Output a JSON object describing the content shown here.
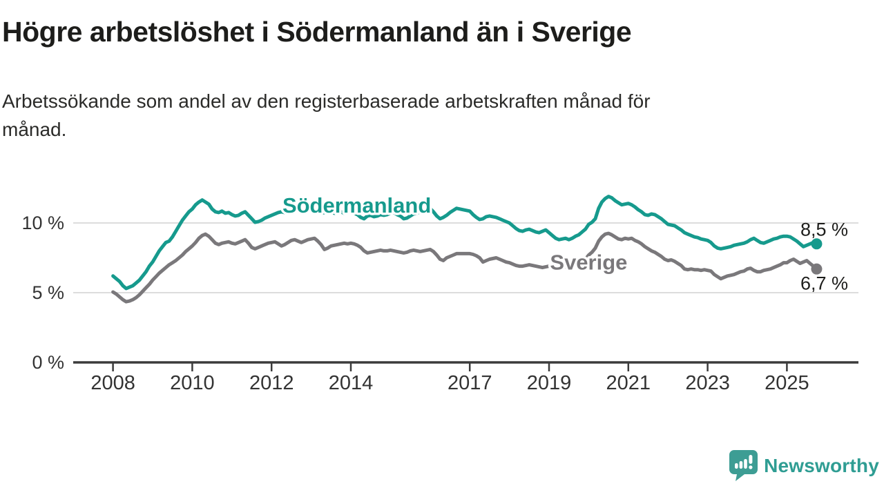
{
  "header": {
    "title": "Högre arbetslöshet i Södermanland än i Sverige",
    "subtitle_line1": "Arbetssökande som andel av den registerbaserade arbetskraften månad för",
    "subtitle_line2": "månad."
  },
  "chart_data": {
    "type": "line",
    "title": "Högre arbetslöshet i Södermanland än i Sverige",
    "subtitle": "Arbetssökande som andel av den registerbaserade arbetskraften månad för månad.",
    "x_unit": "month",
    "x_start": "2008-01",
    "x_end": "2025-10",
    "ylim": [
      0,
      12.5
    ],
    "grid": "horizontal",
    "yticks": [
      {
        "label": "0 %",
        "value": 0
      },
      {
        "label": "5 %",
        "value": 5
      },
      {
        "label": "10 %",
        "value": 10
      }
    ],
    "xticks": [
      {
        "label": "2008",
        "year": 2008
      },
      {
        "label": "2010",
        "year": 2010
      },
      {
        "label": "2012",
        "year": 2012
      },
      {
        "label": "2014",
        "year": 2014
      },
      {
        "label": "2017",
        "year": 2017
      },
      {
        "label": "2019",
        "year": 2019
      },
      {
        "label": "2021",
        "year": 2021
      },
      {
        "label": "2023",
        "year": 2023
      },
      {
        "label": "2025",
        "year": 2025
      }
    ],
    "series": [
      {
        "name": "Sverige",
        "color": "#7a787b",
        "end_label": "6,7 %",
        "end_label_side": "below",
        "label_pos": {
          "year": 2020.0,
          "pct": 7.15
        },
        "values": [
          5.05,
          4.9,
          4.7,
          4.5,
          4.35,
          4.4,
          4.5,
          4.65,
          4.85,
          5.1,
          5.35,
          5.6,
          5.9,
          6.15,
          6.4,
          6.6,
          6.8,
          7.0,
          7.15,
          7.3,
          7.5,
          7.7,
          7.95,
          8.15,
          8.35,
          8.6,
          8.9,
          9.1,
          9.2,
          9.05,
          8.8,
          8.55,
          8.45,
          8.55,
          8.6,
          8.65,
          8.55,
          8.5,
          8.6,
          8.7,
          8.8,
          8.55,
          8.25,
          8.15,
          8.25,
          8.35,
          8.45,
          8.55,
          8.6,
          8.65,
          8.5,
          8.35,
          8.45,
          8.6,
          8.75,
          8.8,
          8.7,
          8.6,
          8.7,
          8.8,
          8.85,
          8.9,
          8.7,
          8.45,
          8.1,
          8.2,
          8.35,
          8.4,
          8.45,
          8.5,
          8.55,
          8.5,
          8.55,
          8.5,
          8.4,
          8.25,
          8.0,
          7.85,
          7.9,
          7.95,
          8.0,
          8.05,
          8.0,
          8.0,
          8.05,
          8.0,
          7.95,
          7.9,
          7.85,
          7.9,
          8.0,
          8.05,
          8.0,
          7.95,
          8.0,
          8.05,
          8.1,
          7.95,
          7.7,
          7.4,
          7.3,
          7.5,
          7.6,
          7.7,
          7.8,
          7.8,
          7.8,
          7.8,
          7.8,
          7.75,
          7.65,
          7.5,
          7.2,
          7.3,
          7.4,
          7.45,
          7.5,
          7.4,
          7.3,
          7.2,
          7.15,
          7.05,
          6.95,
          6.9,
          6.9,
          6.95,
          7.0,
          6.95,
          6.9,
          6.85,
          6.8,
          6.85,
          6.9,
          6.85,
          6.8,
          6.75,
          6.8,
          6.85,
          6.9,
          6.95,
          7.0,
          7.1,
          7.2,
          7.4,
          7.7,
          7.9,
          8.2,
          8.7,
          9.0,
          9.2,
          9.25,
          9.15,
          9.0,
          8.85,
          8.8,
          8.9,
          8.85,
          8.9,
          8.75,
          8.65,
          8.5,
          8.3,
          8.15,
          8.0,
          7.9,
          7.75,
          7.6,
          7.4,
          7.3,
          7.35,
          7.25,
          7.1,
          6.95,
          6.7,
          6.65,
          6.7,
          6.65,
          6.65,
          6.6,
          6.65,
          6.6,
          6.55,
          6.3,
          6.15,
          6.0,
          6.1,
          6.2,
          6.25,
          6.3,
          6.4,
          6.5,
          6.55,
          6.7,
          6.75,
          6.6,
          6.5,
          6.5,
          6.6,
          6.65,
          6.7,
          6.8,
          6.9,
          7.0,
          7.15,
          7.15,
          7.3,
          7.4,
          7.25,
          7.1,
          7.2,
          7.3,
          7.1,
          6.9,
          6.7
        ]
      },
      {
        "name": "Södermanland",
        "color": "#169a8d",
        "end_label": "8,5 %",
        "end_label_side": "above",
        "label_pos": {
          "year": 2014.15,
          "pct": 11.25
        },
        "values": [
          6.2,
          6.0,
          5.8,
          5.5,
          5.3,
          5.4,
          5.5,
          5.7,
          5.9,
          6.2,
          6.5,
          6.9,
          7.2,
          7.6,
          8.0,
          8.3,
          8.6,
          8.7,
          9.0,
          9.4,
          9.8,
          10.2,
          10.5,
          10.8,
          11.0,
          11.3,
          11.5,
          11.65,
          11.5,
          11.35,
          11.0,
          10.8,
          10.75,
          10.85,
          10.7,
          10.75,
          10.6,
          10.5,
          10.55,
          10.7,
          10.8,
          10.55,
          10.3,
          10.05,
          10.1,
          10.2,
          10.35,
          10.45,
          10.55,
          10.65,
          10.75,
          10.8,
          10.75,
          10.85,
          11.0,
          11.1,
          10.95,
          10.8,
          10.9,
          11.0,
          11.05,
          11.1,
          10.9,
          10.7,
          10.75,
          10.85,
          10.8,
          10.7,
          10.75,
          10.8,
          10.7,
          10.75,
          10.8,
          10.7,
          10.6,
          10.4,
          10.3,
          10.5,
          10.55,
          10.45,
          10.5,
          10.6,
          10.55,
          10.6,
          10.7,
          10.75,
          10.6,
          10.5,
          10.3,
          10.35,
          10.5,
          10.65,
          10.7,
          10.8,
          10.9,
          11.0,
          11.05,
          10.8,
          10.5,
          10.3,
          10.4,
          10.55,
          10.75,
          10.9,
          11.05,
          11.0,
          10.95,
          10.9,
          10.85,
          10.6,
          10.4,
          10.25,
          10.3,
          10.45,
          10.5,
          10.45,
          10.4,
          10.3,
          10.2,
          10.1,
          10.0,
          9.8,
          9.6,
          9.45,
          9.4,
          9.5,
          9.55,
          9.45,
          9.35,
          9.3,
          9.4,
          9.5,
          9.3,
          9.1,
          8.9,
          8.8,
          8.85,
          8.9,
          8.8,
          8.9,
          9.05,
          9.15,
          9.35,
          9.55,
          9.9,
          10.05,
          10.3,
          11.05,
          11.5,
          11.75,
          11.9,
          11.8,
          11.6,
          11.45,
          11.3,
          11.35,
          11.4,
          11.3,
          11.15,
          10.95,
          10.8,
          10.6,
          10.55,
          10.65,
          10.6,
          10.45,
          10.3,
          10.1,
          9.9,
          9.85,
          9.8,
          9.65,
          9.5,
          9.3,
          9.2,
          9.1,
          9.0,
          8.95,
          8.85,
          8.8,
          8.75,
          8.6,
          8.35,
          8.2,
          8.15,
          8.2,
          8.25,
          8.3,
          8.4,
          8.45,
          8.5,
          8.55,
          8.65,
          8.8,
          8.9,
          8.75,
          8.6,
          8.55,
          8.65,
          8.75,
          8.85,
          8.9,
          9.0,
          9.05,
          9.05,
          9.0,
          8.85,
          8.7,
          8.5,
          8.3,
          8.4,
          8.5,
          8.6,
          8.5
        ]
      }
    ]
  },
  "logo": {
    "text": "Newsworthy",
    "icon": "speech-bubble-bar-chart-icon",
    "bubble_color": "#3d9d94",
    "text_color": "#2f9d93"
  },
  "style": {
    "grid_color": "#dcdcdc",
    "axis_color": "#3b3b3b",
    "tick_text_color": "#333333",
    "value_label_color": "#1d1d1b"
  }
}
